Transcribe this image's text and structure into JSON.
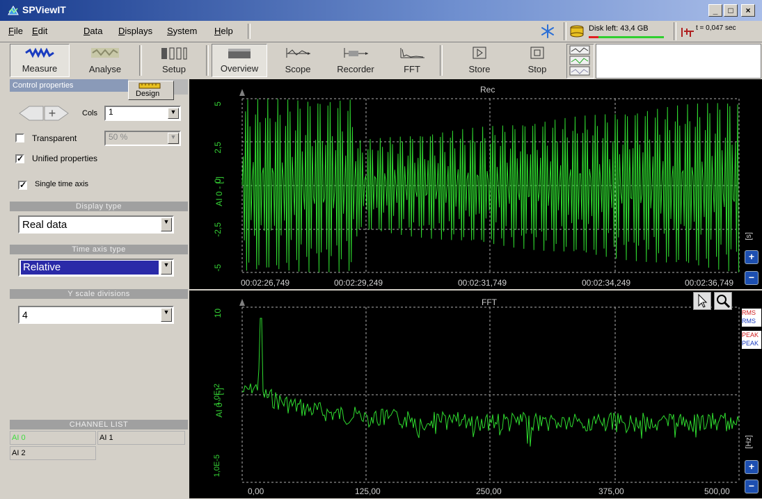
{
  "window": {
    "title": "SPViewIT",
    "min_label": "_",
    "max_label": "□",
    "close_label": "×"
  },
  "menu": [
    {
      "label": "File"
    },
    {
      "label": "Edit"
    },
    {
      "label": "Data"
    },
    {
      "label": "Displays"
    },
    {
      "label": "System"
    },
    {
      "label": "Help"
    }
  ],
  "status": {
    "disk_left": "Disk left: 43,4 GB",
    "time": "t = 0,047 sec"
  },
  "toolbar": {
    "measure": "Measure",
    "analyse": "Analyse",
    "setup": "Setup",
    "overview": "Overview",
    "scope": "Scope",
    "recorder": "Recorder",
    "fft": "FFT",
    "store": "Store",
    "stop": "Stop"
  },
  "control": {
    "tab_label": "Control properties",
    "design_label": "Design",
    "cols_label": "Cols",
    "cols_value": "1",
    "transparent_label": "Transparent",
    "transparent_value": "50 %",
    "transparent_checked": false,
    "unified_label": "Unified properties",
    "unified_checked": true,
    "single_time_label": "Single time axis",
    "single_time_checked": true,
    "display_type_header": "Display type",
    "display_type_value": "Real data",
    "time_axis_header": "Time axis type",
    "time_axis_value": "Relative",
    "y_scale_header": "Y scale divisions",
    "y_scale_value": "4"
  },
  "channel_list": {
    "header": "CHANNEL LIST",
    "channels": [
      "AI 0",
      "AI 1",
      "AI 2"
    ],
    "active": "AI 0"
  },
  "rec_plot": {
    "title": "Rec",
    "ylabel": "AI 0 - [-]",
    "unit_side": "[s]",
    "yticks": [
      "5",
      "2,5",
      "0",
      "-2,5",
      "-5"
    ],
    "xticks": [
      "00:02:26,749",
      "00:02:29,249",
      "00:02:31,749",
      "00:02:34,249",
      "00:02:36,749"
    ]
  },
  "fft_plot": {
    "title": "FFT",
    "ylabel": "AI 0 - [-]",
    "unit_side": "[Hz]",
    "yticks": [
      "10",
      "1,0E-2",
      "1,0E-5"
    ],
    "xticks": [
      "0,00",
      "125,00",
      "250,00",
      "375,00",
      "500,00"
    ],
    "side_labels": [
      "RMS",
      "RMS",
      "PEAK",
      "PEAK"
    ]
  },
  "colors": {
    "signal": "#2fdc2f",
    "plot_bg": "#000000",
    "grid": "#b0b0b0"
  }
}
